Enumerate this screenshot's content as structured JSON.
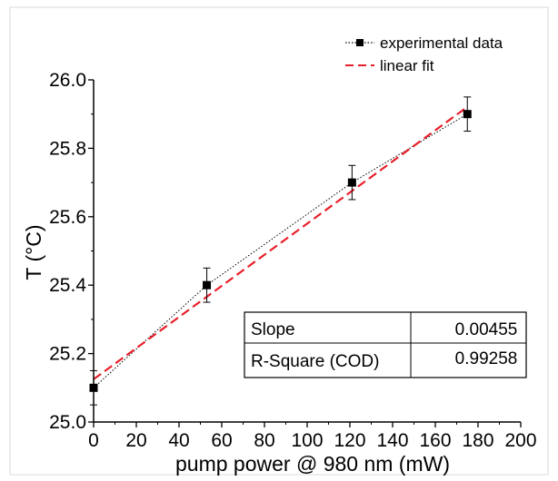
{
  "chart_data": {
    "type": "scatter",
    "xlabel": "pump power @ 980 nm (mW)",
    "ylabel": "T (°C)",
    "xlim": [
      0,
      200
    ],
    "ylim": [
      25.0,
      26.0
    ],
    "x_ticks": [
      0,
      20,
      40,
      60,
      80,
      100,
      120,
      140,
      160,
      180,
      200
    ],
    "y_ticks": [
      25.0,
      25.2,
      25.4,
      25.6,
      25.8,
      26.0
    ],
    "y_tick_labels": [
      "25.0",
      "25.2",
      "25.4",
      "25.6",
      "25.8",
      "26.0"
    ],
    "grid": false,
    "legend_position": "top-right",
    "series": [
      {
        "name": "experimental data",
        "style": "black square markers, dotted connecting line, error bars",
        "color": "#000000",
        "x": [
          0,
          53,
          121,
          175
        ],
        "y": [
          25.1,
          25.4,
          25.7,
          25.9
        ],
        "y_err": [
          0.05,
          0.05,
          0.05,
          0.05
        ]
      },
      {
        "name": "linear fit",
        "style": "dashed line",
        "color": "#e8202a",
        "x": [
          0,
          175
        ],
        "y": [
          25.125,
          25.921
        ]
      }
    ],
    "table": {
      "rows": [
        [
          "Slope",
          "0.00455"
        ],
        [
          "R-Square (COD)",
          "0.99258"
        ]
      ]
    }
  }
}
